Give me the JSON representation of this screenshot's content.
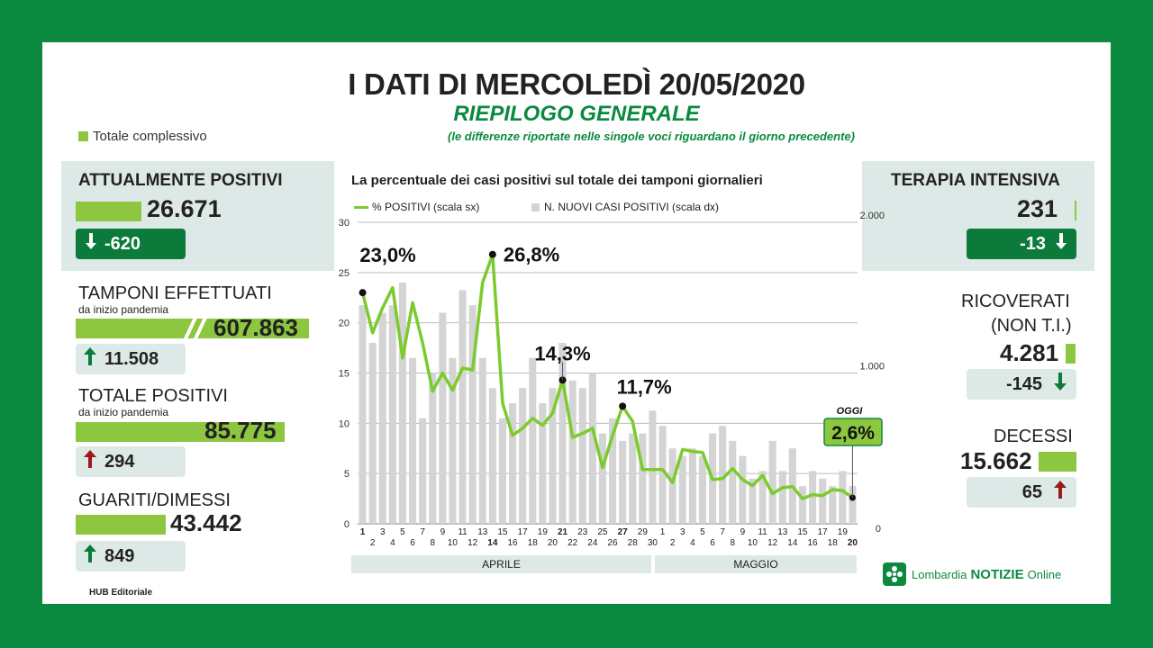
{
  "header": {
    "title": "I DATI DI MERCOLEDÌ 20/05/2020",
    "subtitle": "RIEPILOGO GENERALE",
    "note": "(le differenze riportate nelle singole voci riguardano il giorno precedente)",
    "legend_total": "Totale complessivo"
  },
  "colors": {
    "brand_green": "#0b8a3f",
    "bar_green": "#8dc63f",
    "line_green": "#7ccb2e",
    "bar_gray": "#d4d4d4",
    "up_red": "#9b1b1b"
  },
  "left": {
    "attualmente": {
      "label": "ATTUALMENTE POSITIVI",
      "value": "26.671",
      "diff": "-620",
      "arrow": "arrow-down-icon"
    },
    "tamponi": {
      "label": "TAMPONI EFFETTUATI",
      "sub": "da inizio pandemia",
      "value": "607.863",
      "diff": "11.508",
      "arrow": "arrow-up-icon"
    },
    "totale": {
      "label": "TOTALE POSITIVI",
      "sub": "da inizio pandemia",
      "value": "85.775",
      "diff": "294",
      "arrow": "arrow-up-icon"
    },
    "guariti": {
      "label": "GUARITI/DIMESSI",
      "value": "43.442",
      "diff": "849",
      "arrow": "arrow-up-icon"
    }
  },
  "right": {
    "terapia": {
      "label": "TERAPIA INTENSIVA",
      "value": "231",
      "diff": "-13",
      "arrow": "arrow-down-icon"
    },
    "ricoverati": {
      "label1": "RICOVERATI",
      "label2": "(NON T.I.)",
      "value": "4.281",
      "diff": "-145",
      "arrow": "arrow-down-icon"
    },
    "decessi": {
      "label": "DECESSI",
      "value": "15.662",
      "diff": "65",
      "arrow": "arrow-up-icon"
    }
  },
  "footer": {
    "credit": "HUB Editoriale",
    "brand_pre": "Lombardia",
    "brand_bold": "NOTIZIE",
    "brand_post": "Online"
  },
  "chart_data": {
    "type": "bar",
    "title": "La percentuale dei casi positivi sul totale dei tamponi giornalieri",
    "legend": [
      "% POSITIVI (scala sx)",
      "N. NUOVI CASI POSITIVI (scala dx)"
    ],
    "y_left_ticks": [
      0,
      5,
      10,
      15,
      20,
      25,
      30
    ],
    "y_right_ticks": [
      "0",
      "1.000",
      "2.000"
    ],
    "ylim_left": [
      0,
      30
    ],
    "ylim_right": [
      0,
      2000
    ],
    "x_labels_top": [
      "1",
      "3",
      "5",
      "7",
      "9",
      "11",
      "13",
      "14",
      "15",
      "17",
      "19",
      "21",
      "23",
      "25",
      "27",
      "29",
      "1",
      "3",
      "5",
      "7",
      "9",
      "11",
      "13",
      "15",
      "17",
      "19"
    ],
    "x_labels": [
      "1",
      "2",
      "3",
      "4",
      "5",
      "6",
      "7",
      "8",
      "9",
      "10",
      "11",
      "12",
      "13",
      "14",
      "15",
      "16",
      "17",
      "18",
      "19",
      "20",
      "21",
      "22",
      "23",
      "24",
      "25",
      "26",
      "27",
      "28",
      "29",
      "30",
      "1",
      "2",
      "3",
      "4",
      "5",
      "6",
      "7",
      "8",
      "9",
      "10",
      "11",
      "12",
      "13",
      "14",
      "15",
      "16",
      "17",
      "18",
      "19",
      "20"
    ],
    "months": [
      "APRILE",
      "MAGGIO"
    ],
    "bars": [
      1450,
      1200,
      1400,
      1450,
      1600,
      1100,
      700,
      1000,
      1400,
      1100,
      1550,
      1450,
      1100,
      900,
      700,
      800,
      900,
      1100,
      800,
      900,
      1200,
      950,
      900,
      1000,
      600,
      700,
      550,
      600,
      600,
      750,
      650,
      500,
      450,
      500,
      450,
      600,
      650,
      550,
      450,
      300,
      350,
      550,
      350,
      500,
      250,
      350,
      300,
      250,
      350,
      250
    ],
    "percent": [
      23.0,
      19.0,
      21.5,
      23.5,
      16.5,
      22.0,
      18.0,
      13.2,
      15.0,
      13.3,
      15.5,
      15.3,
      24.0,
      26.8,
      12.0,
      8.8,
      9.5,
      10.5,
      9.8,
      11.0,
      14.3,
      8.6,
      9.0,
      9.5,
      5.6,
      8.8,
      11.7,
      10.2,
      5.4,
      5.4,
      5.4,
      4.1,
      7.4,
      7.2,
      7.1,
      4.4,
      4.5,
      5.5,
      4.4,
      3.8,
      4.8,
      3.0,
      3.6,
      3.7,
      2.5,
      2.9,
      2.8,
      3.4,
      3.3,
      2.6
    ],
    "callouts": [
      {
        "text": "23,0%",
        "index": 0
      },
      {
        "text": "26,8%",
        "index": 13
      },
      {
        "text": "14,3%",
        "index": 20
      },
      {
        "text": "11,7%",
        "index": 26
      }
    ],
    "today_label": "OGGI",
    "today_value": "2,6%"
  }
}
